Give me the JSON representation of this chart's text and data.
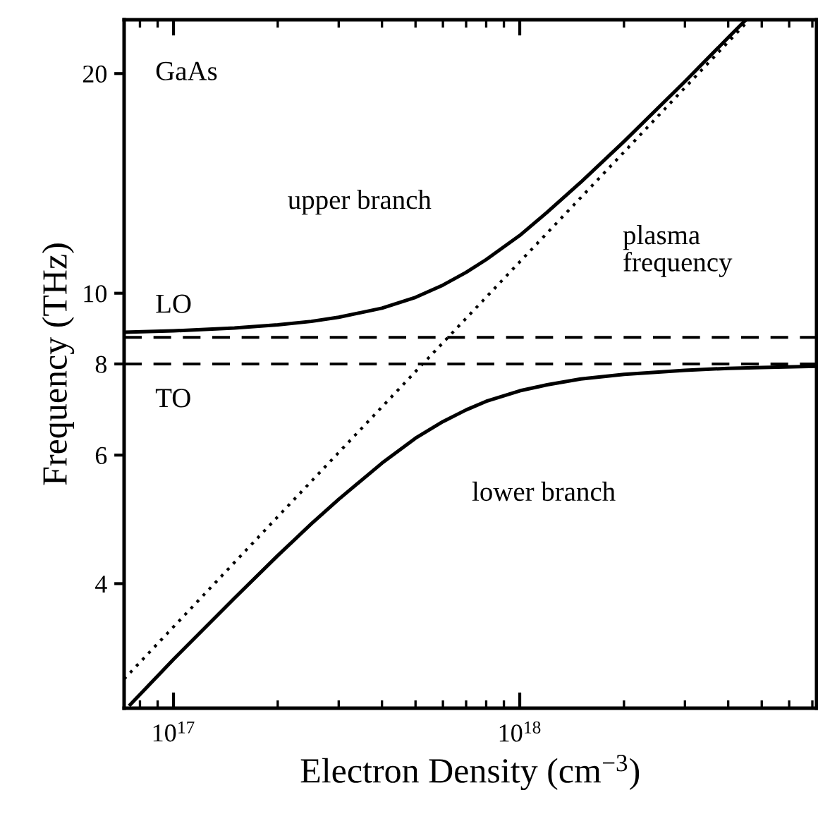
{
  "chart_data": {
    "type": "line",
    "xlabel": "Electron Density (cm$^{−3}$)",
    "ylabel": "Frequency (THz)",
    "log": "xy",
    "xlim": [
      7.2e+16,
      7.2e+18
    ],
    "ylim": [
      2.7,
      23.7
    ],
    "xticks": [
      {
        "value": 1e+17,
        "label": "10$^{17}$"
      },
      {
        "value": 1e+18,
        "label": "10$^{18}$"
      }
    ],
    "yticks": [
      4,
      6,
      8,
      10,
      20
    ],
    "grid": false,
    "legend": false,
    "marker": "none",
    "series": [
      {
        "name": "upper branch",
        "color": "#000000",
        "line_style": "solid",
        "x": [
          7.2e+16,
          1e+17,
          1.5e+17,
          2e+17,
          2.5e+17,
          3e+17,
          4e+17,
          5e+17,
          6e+17,
          7e+17,
          8e+17,
          1e+18,
          1.2e+18,
          1.5e+18,
          2e+18,
          3e+18,
          4e+18,
          4.5e+18
        ],
        "values": [
          8.84,
          8.88,
          8.96,
          9.05,
          9.15,
          9.27,
          9.54,
          9.87,
          10.26,
          10.68,
          11.12,
          12.0,
          12.91,
          14.19,
          16.14,
          19.51,
          22.4,
          23.7
        ]
      },
      {
        "name": "lower branch",
        "color": "#000000",
        "line_style": "solid",
        "x": [
          7.5e+16,
          1e+17,
          1.5e+17,
          2e+17,
          2.5e+17,
          3e+17,
          4e+17,
          5e+17,
          6e+17,
          7e+17,
          8e+17,
          1e+18,
          1.2e+18,
          1.5e+18,
          2e+18,
          3e+18,
          4e+18,
          5e+18,
          7.2e+18
        ],
        "values": [
          2.73,
          3.15,
          3.82,
          4.37,
          4.83,
          5.22,
          5.85,
          6.33,
          6.67,
          6.92,
          7.11,
          7.35,
          7.49,
          7.63,
          7.74,
          7.84,
          7.89,
          7.91,
          7.94
        ]
      },
      {
        "name": "plasma frequency",
        "color": "#000000",
        "line_style": "dotted",
        "x": [
          7.2e+16,
          1e+17,
          2e+17,
          5e+17,
          1e+18,
          2e+18,
          4.6e+18
        ],
        "values": [
          2.96,
          3.49,
          4.94,
          7.81,
          11.04,
          15.61,
          23.7
        ]
      }
    ],
    "ref_lines": [
      {
        "axis": "y",
        "value": 8.7,
        "label": "LO",
        "color": "#000000",
        "line_style": "dashed"
      },
      {
        "axis": "y",
        "value": 8.0,
        "label": "TO",
        "color": "#000000",
        "line_style": "dashed"
      }
    ],
    "annotations": [
      "GaAs"
    ]
  }
}
